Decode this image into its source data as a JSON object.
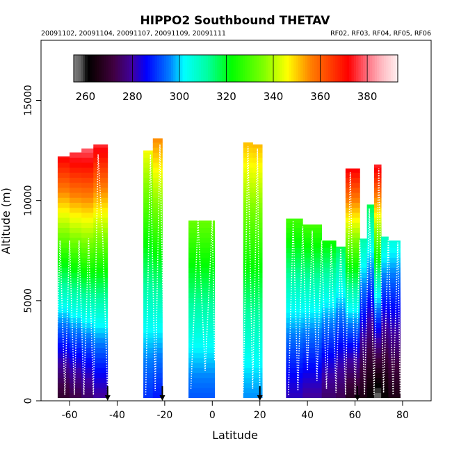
{
  "chart_data": {
    "type": "heatmap",
    "title": "HIPPO2 Southbound THETAV",
    "subtitle_left": "20091102, 20091104, 20091107, 20091109, 20091111",
    "subtitle_right": "RF02, RF03, RF04, RF05, RF06",
    "xlabel": "Latitude",
    "ylabel": "Altitude (m)",
    "xlim": [
      -72,
      92
    ],
    "ylim": [
      0,
      18000
    ],
    "x_ticks": [
      -60,
      -40,
      -20,
      0,
      20,
      40,
      60,
      80
    ],
    "y_ticks": [
      0,
      5000,
      10000,
      15000
    ],
    "colorbar": {
      "range": [
        255,
        393
      ],
      "ticks": [
        260,
        280,
        300,
        320,
        340,
        360,
        380
      ],
      "stops": [
        [
          255,
          "#808080"
        ],
        [
          258,
          "#606060"
        ],
        [
          261,
          "#000000"
        ],
        [
          265,
          "#1a0010"
        ],
        [
          272,
          "#400040"
        ],
        [
          280,
          "#4000a0"
        ],
        [
          286,
          "#0000ff"
        ],
        [
          296,
          "#0080ff"
        ],
        [
          302,
          "#00ffff"
        ],
        [
          312,
          "#00ffa0"
        ],
        [
          322,
          "#00ff00"
        ],
        [
          336,
          "#80ff00"
        ],
        [
          346,
          "#ffff00"
        ],
        [
          356,
          "#ff8000"
        ],
        [
          366,
          "#ff3000"
        ],
        [
          372,
          "#ff0000"
        ],
        [
          380,
          "#ff7080"
        ],
        [
          386,
          "#ffb8c0"
        ],
        [
          393,
          "#fff0f0"
        ]
      ]
    },
    "profiles": [
      {
        "x0": -65,
        "x1": -60,
        "top": 12200,
        "theta_bottom": 270,
        "theta_top": 374
      },
      {
        "x0": -60,
        "x1": -55,
        "top": 12400,
        "theta_bottom": 273,
        "theta_top": 378
      },
      {
        "x0": -55,
        "x1": -50,
        "top": 12600,
        "theta_bottom": 276,
        "theta_top": 380
      },
      {
        "x0": -50,
        "x1": -44,
        "top": 12800,
        "theta_bottom": 280,
        "theta_top": 376
      },
      {
        "x0": -29,
        "x1": -25,
        "top": 12500,
        "theta_bottom": 290,
        "theta_top": 346
      },
      {
        "x0": -25,
        "x1": -21,
        "top": 13100,
        "theta_bottom": 288,
        "theta_top": 356
      },
      {
        "x0": -10,
        "x1": 1,
        "top": 9000,
        "theta_bottom": 293,
        "theta_top": 334
      },
      {
        "x0": 13,
        "x1": 17,
        "top": 12900,
        "theta_bottom": 297,
        "theta_top": 352
      },
      {
        "x0": 17,
        "x1": 21,
        "top": 12800,
        "theta_bottom": 297,
        "theta_top": 352
      },
      {
        "x0": 31,
        "x1": 38,
        "top": 9100,
        "theta_bottom": 282,
        "theta_top": 330
      },
      {
        "x0": 38,
        "x1": 46,
        "top": 8800,
        "theta_bottom": 280,
        "theta_top": 330
      },
      {
        "x0": 46,
        "x1": 52,
        "top": 8000,
        "theta_bottom": 276,
        "theta_top": 324
      },
      {
        "x0": 52,
        "x1": 56,
        "top": 7700,
        "theta_bottom": 274,
        "theta_top": 318
      },
      {
        "x0": 56,
        "x1": 62,
        "top": 11600,
        "theta_bottom": 268,
        "theta_top": 374
      },
      {
        "x0": 62,
        "x1": 65,
        "top": 8100,
        "theta_bottom": 266,
        "theta_top": 312
      },
      {
        "x0": 65,
        "x1": 68,
        "top": 9800,
        "theta_bottom": 262,
        "theta_top": 318
      },
      {
        "x0": 68,
        "x1": 71,
        "top": 11800,
        "theta_bottom": 258,
        "theta_top": 376
      },
      {
        "x0": 71,
        "x1": 74,
        "top": 8200,
        "theta_bottom": 262,
        "theta_top": 310
      },
      {
        "x0": 74,
        "x1": 79,
        "top": 8000,
        "theta_bottom": 266,
        "theta_top": 306
      }
    ],
    "flight_tracks": [
      {
        "lat": [
          -66,
          -64,
          -62,
          -60,
          -58,
          -56,
          -54,
          -52,
          -50,
          -48,
          -46,
          -44
        ],
        "alt": [
          300,
          8000,
          300,
          8000,
          300,
          8000,
          300,
          8100,
          300,
          12300,
          8000,
          300
        ]
      },
      {
        "lat": [
          -28,
          -26,
          -24,
          -22,
          -20
        ],
        "alt": [
          300,
          12300,
          500,
          12800,
          300
        ]
      },
      {
        "lat": [
          -9,
          -6,
          -3,
          0,
          1
        ],
        "alt": [
          600,
          9000,
          1500,
          9000,
          2000
        ]
      },
      {
        "lat": [
          13,
          15,
          17,
          19,
          20
        ],
        "alt": [
          400,
          12700,
          600,
          12600,
          300
        ]
      },
      {
        "lat": [
          32,
          34,
          36,
          38,
          40,
          42,
          44,
          46,
          48,
          50,
          52,
          54,
          56,
          58,
          60,
          62,
          64,
          66,
          68,
          70,
          72,
          74,
          76,
          78,
          79
        ],
        "alt": [
          300,
          9000,
          500,
          8700,
          1500,
          8500,
          1000,
          8000,
          600,
          7800,
          400,
          7600,
          300,
          11400,
          300,
          8000,
          300,
          9600,
          300,
          11600,
          400,
          8000,
          300,
          7900,
          300
        ]
      }
    ],
    "arrows_lat": [
      -44,
      -21,
      20,
      61
    ]
  }
}
